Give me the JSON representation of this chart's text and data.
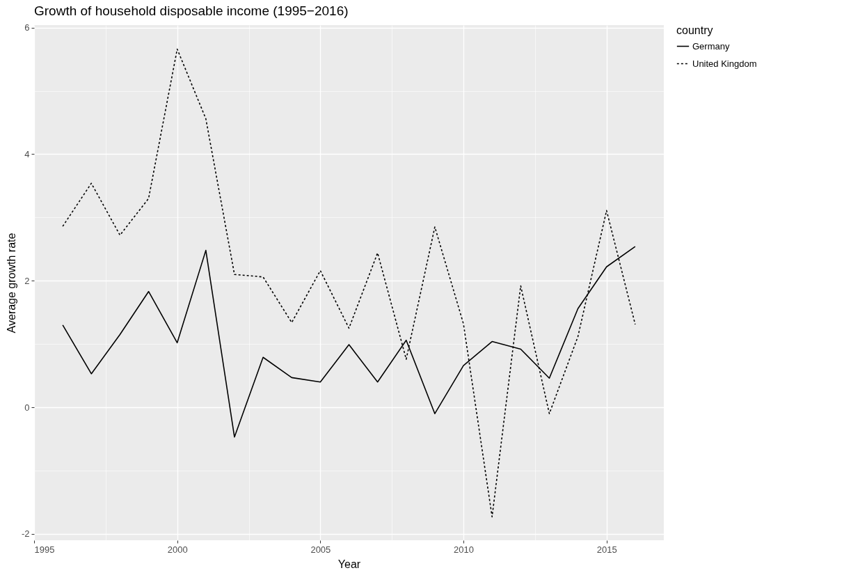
{
  "chart_data": {
    "type": "line",
    "title": "Growth of household disposable income (1995−2016)",
    "xlabel": "Year",
    "ylabel": "Average growth rate",
    "legend_title": "country",
    "x": [
      1996,
      1997,
      1998,
      1999,
      2000,
      2001,
      2002,
      2003,
      2004,
      2005,
      2006,
      2007,
      2008,
      2009,
      2010,
      2011,
      2012,
      2013,
      2014,
      2015,
      2016
    ],
    "series": [
      {
        "name": "Germany",
        "color": "#000000",
        "line_style": "solid",
        "values": [
          1.3,
          0.53,
          1.15,
          1.83,
          1.02,
          2.48,
          -0.47,
          0.79,
          0.47,
          0.4,
          0.99,
          0.4,
          1.06,
          -0.1,
          0.66,
          1.04,
          0.92,
          0.46,
          1.56,
          2.22,
          2.54
        ]
      },
      {
        "name": "United Kingdom",
        "color": "#000000",
        "line_style": "dotted",
        "values": [
          2.86,
          3.54,
          2.72,
          3.3,
          5.66,
          4.56,
          2.1,
          2.06,
          1.34,
          2.16,
          1.25,
          2.44,
          0.76,
          2.85,
          1.32,
          -1.73,
          1.92,
          -0.1,
          1.12,
          3.11,
          1.31
        ]
      }
    ],
    "xlim": [
      1995,
      2017
    ],
    "xticks": [
      1995,
      {
        "value": 1997.5,
        "label": null
      },
      2000,
      {
        "value": 2002.5,
        "label": null
      },
      2005,
      {
        "value": 2007.5,
        "label": null
      },
      2010,
      {
        "value": 2012.5,
        "label": null
      },
      2015
    ],
    "ylim": [
      -2.1,
      6.04
    ],
    "yticks": [
      -2,
      {
        "value": -1,
        "label": null
      },
      0,
      {
        "value": 1,
        "label": null
      },
      2,
      {
        "value": 3,
        "label": null
      },
      4,
      {
        "value": 5,
        "label": null
      },
      6
    ],
    "grid": true,
    "legend": "right",
    "marker": "none"
  }
}
